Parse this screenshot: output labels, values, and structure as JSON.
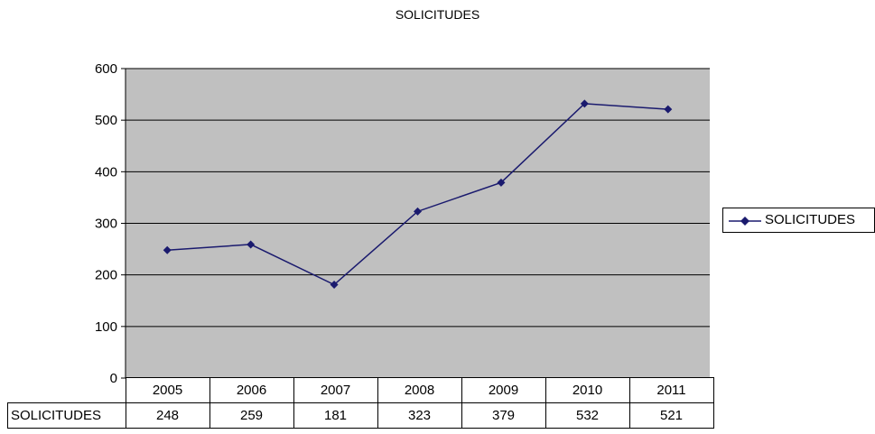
{
  "chart_data": {
    "type": "line",
    "title": "SOLICITUDES",
    "categories": [
      "2005",
      "2006",
      "2007",
      "2008",
      "2009",
      "2010",
      "2011"
    ],
    "series": [
      {
        "name": "SOLICITUDES",
        "values": [
          248,
          259,
          181,
          323,
          379,
          532,
          521
        ]
      }
    ],
    "ylim": [
      0,
      600
    ],
    "yticks": [
      0,
      100,
      200,
      300,
      400,
      500,
      600
    ],
    "grid": true,
    "legend_position": "right",
    "line_color": "#1a1a6e",
    "plot_background": "#c0c0c0",
    "data_table": true
  }
}
